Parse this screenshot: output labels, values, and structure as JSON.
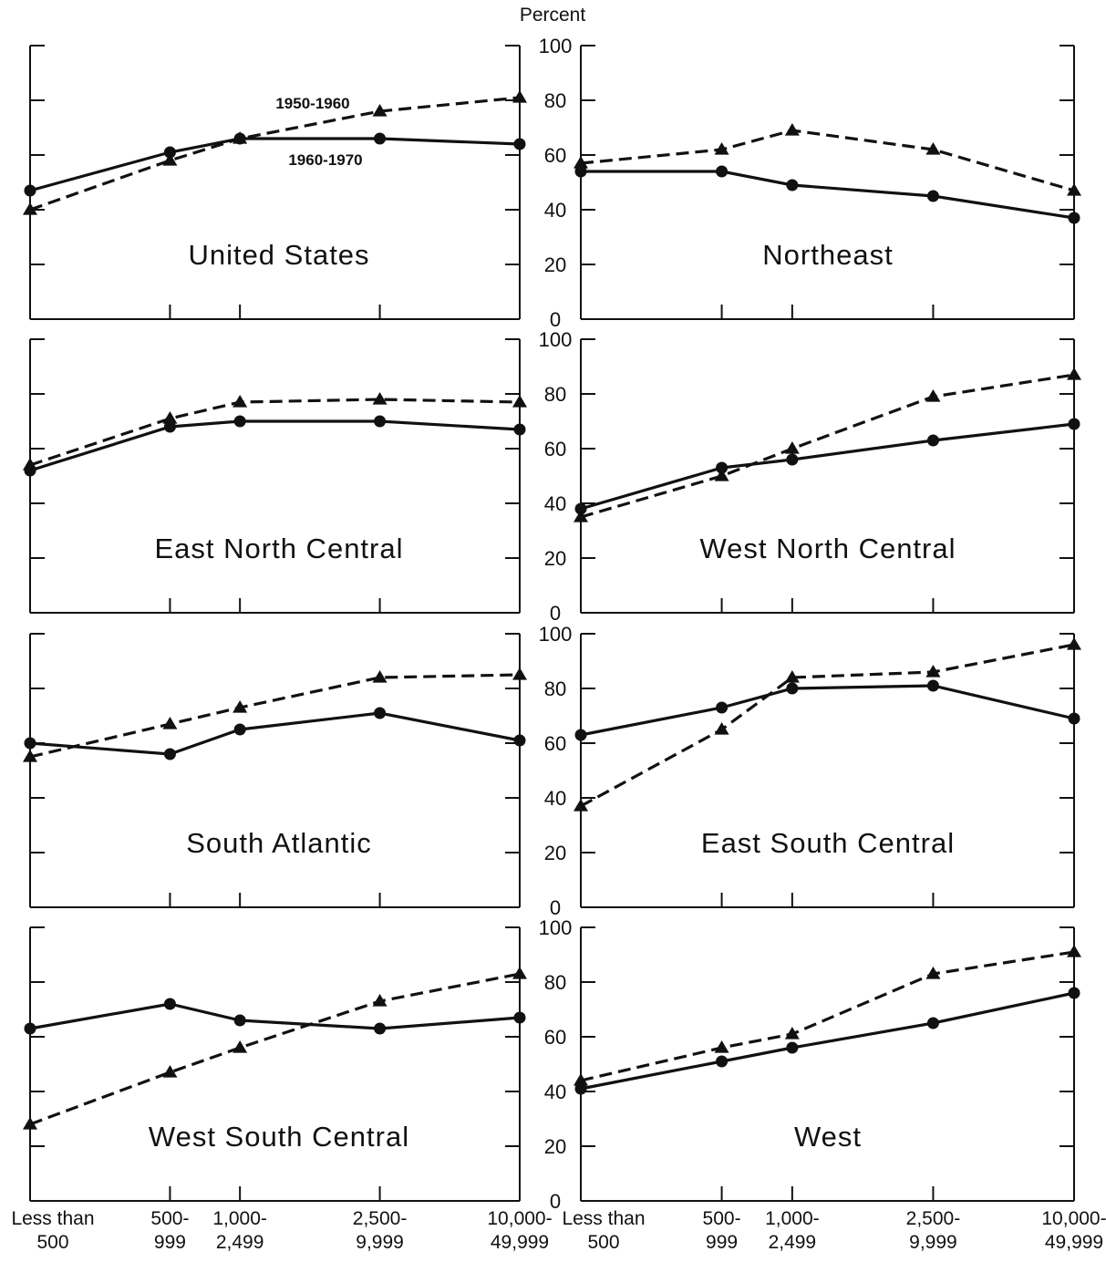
{
  "figure": {
    "y_unit_label": "Percent"
  },
  "colors": {
    "ink": "#111111",
    "background": "#ffffff"
  },
  "chart_data": [
    {
      "type": "line",
      "title": "United States",
      "categories": [
        "Less than 500",
        "500-999",
        "1,000-2,499",
        "2,500-9,999",
        "10,000-49,999"
      ],
      "x": [
        0,
        2,
        3,
        5,
        7
      ],
      "ylim": [
        0,
        100
      ],
      "yticks": [
        0,
        20,
        40,
        60,
        80,
        100
      ],
      "series": [
        {
          "name": "1950-1960",
          "style": "dashed",
          "marker": "triangle",
          "values": [
            40,
            58,
            66,
            76,
            81
          ]
        },
        {
          "name": "1960-1970",
          "style": "solid",
          "marker": "circle",
          "values": [
            47,
            61,
            66,
            66,
            64
          ]
        }
      ]
    },
    {
      "type": "line",
      "title": "Northeast",
      "categories": [
        "Less than 500",
        "500-999",
        "1,000-2,499",
        "2,500-9,999",
        "10,000-49,999"
      ],
      "x": [
        0,
        2,
        3,
        5,
        7
      ],
      "ylim": [
        0,
        100
      ],
      "yticks": [
        0,
        20,
        40,
        60,
        80,
        100
      ],
      "series": [
        {
          "style": "dashed",
          "marker": "triangle",
          "values": [
            57,
            62,
            69,
            62,
            47
          ]
        },
        {
          "style": "solid",
          "marker": "circle",
          "values": [
            54,
            54,
            49,
            45,
            37
          ]
        }
      ]
    },
    {
      "type": "line",
      "title": "East North Central",
      "categories": [
        "Less than 500",
        "500-999",
        "1,000-2,499",
        "2,500-9,999",
        "10,000-49,999"
      ],
      "x": [
        0,
        2,
        3,
        5,
        7
      ],
      "ylim": [
        0,
        100
      ],
      "yticks": [
        0,
        20,
        40,
        60,
        80,
        100
      ],
      "series": [
        {
          "style": "dashed",
          "marker": "triangle",
          "values": [
            54,
            71,
            77,
            78,
            77
          ]
        },
        {
          "style": "solid",
          "marker": "circle",
          "values": [
            52,
            68,
            70,
            70,
            67
          ]
        }
      ]
    },
    {
      "type": "line",
      "title": "West North Central",
      "categories": [
        "Less than 500",
        "500-999",
        "1,000-2,499",
        "2,500-9,999",
        "10,000-49,999"
      ],
      "x": [
        0,
        2,
        3,
        5,
        7
      ],
      "ylim": [
        0,
        100
      ],
      "yticks": [
        0,
        20,
        40,
        60,
        80,
        100
      ],
      "series": [
        {
          "style": "dashed",
          "marker": "triangle",
          "values": [
            35,
            50,
            60,
            79,
            87
          ]
        },
        {
          "style": "solid",
          "marker": "circle",
          "values": [
            38,
            53,
            56,
            63,
            69
          ]
        }
      ]
    },
    {
      "type": "line",
      "title": "South Atlantic",
      "categories": [
        "Less than 500",
        "500-999",
        "1,000-2,499",
        "2,500-9,999",
        "10,000-49,999"
      ],
      "x": [
        0,
        2,
        3,
        5,
        7
      ],
      "ylim": [
        0,
        100
      ],
      "yticks": [
        0,
        20,
        40,
        60,
        80,
        100
      ],
      "series": [
        {
          "style": "dashed",
          "marker": "triangle",
          "values": [
            55,
            67,
            73,
            84,
            85
          ]
        },
        {
          "style": "solid",
          "marker": "circle",
          "values": [
            60,
            56,
            65,
            71,
            61
          ]
        }
      ]
    },
    {
      "type": "line",
      "title": "East South Central",
      "categories": [
        "Less than 500",
        "500-999",
        "1,000-2,499",
        "2,500-9,999",
        "10,000-49,999"
      ],
      "x": [
        0,
        2,
        3,
        5,
        7
      ],
      "ylim": [
        0,
        100
      ],
      "yticks": [
        0,
        20,
        40,
        60,
        80,
        100
      ],
      "series": [
        {
          "style": "dashed",
          "marker": "triangle",
          "values": [
            37,
            65,
            84,
            86,
            96
          ]
        },
        {
          "style": "solid",
          "marker": "circle",
          "values": [
            63,
            73,
            80,
            81,
            69
          ]
        }
      ]
    },
    {
      "type": "line",
      "title": "West South Central",
      "categories": [
        "Less than 500",
        "500-999",
        "1,000-2,499",
        "2,500-9,999",
        "10,000-49,999"
      ],
      "x": [
        0,
        2,
        3,
        5,
        7
      ],
      "ylim": [
        0,
        100
      ],
      "yticks": [
        0,
        20,
        40,
        60,
        80,
        100
      ],
      "series": [
        {
          "style": "dashed",
          "marker": "triangle",
          "values": [
            28,
            47,
            56,
            73,
            83
          ]
        },
        {
          "style": "solid",
          "marker": "circle",
          "values": [
            63,
            72,
            66,
            63,
            67
          ]
        }
      ]
    },
    {
      "type": "line",
      "title": "West",
      "categories": [
        "Less than 500",
        "500-999",
        "1,000-2,499",
        "2,500-9,999",
        "10,000-49,999"
      ],
      "x": [
        0,
        2,
        3,
        5,
        7
      ],
      "ylim": [
        0,
        100
      ],
      "yticks": [
        0,
        20,
        40,
        60,
        80,
        100
      ],
      "series": [
        {
          "style": "dashed",
          "marker": "triangle",
          "values": [
            44,
            56,
            61,
            83,
            91
          ]
        },
        {
          "style": "solid",
          "marker": "circle",
          "values": [
            41,
            51,
            56,
            65,
            76
          ]
        }
      ]
    }
  ]
}
